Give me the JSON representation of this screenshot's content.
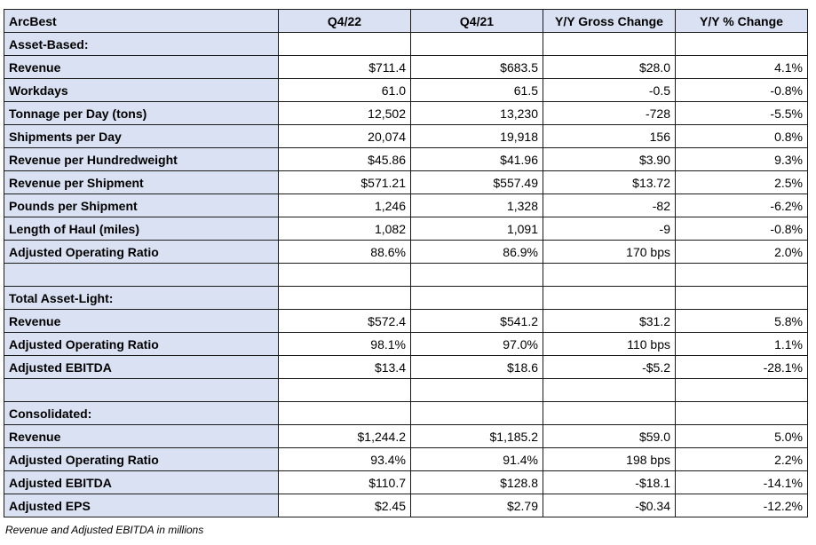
{
  "table": {
    "headers": [
      "ArcBest",
      "Q4/22",
      "Q4/21",
      "Y/Y Gross Change",
      "Y/Y % Change"
    ],
    "rows": [
      {
        "type": "section",
        "label": "Asset-Based:"
      },
      {
        "type": "data",
        "label": "Revenue",
        "values": [
          "$711.4",
          "$683.5",
          "$28.0",
          "4.1%"
        ]
      },
      {
        "type": "data",
        "label": "Workdays",
        "values": [
          "61.0",
          "61.5",
          "-0.5",
          "-0.8%"
        ]
      },
      {
        "type": "data",
        "label": "Tonnage per Day (tons)",
        "values": [
          "12,502",
          "13,230",
          "-728",
          "-5.5%"
        ]
      },
      {
        "type": "data",
        "label": "Shipments per Day",
        "values": [
          "20,074",
          "19,918",
          "156",
          "0.8%"
        ]
      },
      {
        "type": "data",
        "label": "Revenue per Hundredweight",
        "values": [
          "$45.86",
          "$41.96",
          "$3.90",
          "9.3%"
        ]
      },
      {
        "type": "data",
        "label": "Revenue per Shipment",
        "values": [
          "$571.21",
          "$557.49",
          "$13.72",
          "2.5%"
        ]
      },
      {
        "type": "data",
        "label": "Pounds per Shipment",
        "values": [
          "1,246",
          "1,328",
          "-82",
          "-6.2%"
        ]
      },
      {
        "type": "data",
        "label": "Length of Haul (miles)",
        "values": [
          "1,082",
          "1,091",
          "-9",
          "-0.8%"
        ]
      },
      {
        "type": "data",
        "label": "Adjusted Operating Ratio",
        "values": [
          "88.6%",
          "86.9%",
          "170 bps",
          "2.0%"
        ]
      },
      {
        "type": "blank"
      },
      {
        "type": "section",
        "label": "Total Asset-Light:"
      },
      {
        "type": "data",
        "label": "Revenue",
        "values": [
          "$572.4",
          "$541.2",
          "$31.2",
          "5.8%"
        ]
      },
      {
        "type": "data",
        "label": "Adjusted Operating Ratio",
        "values": [
          "98.1%",
          "97.0%",
          "110 bps",
          "1.1%"
        ]
      },
      {
        "type": "data",
        "label": "Adjusted EBITDA",
        "values": [
          "$13.4",
          "$18.6",
          "-$5.2",
          "-28.1%"
        ]
      },
      {
        "type": "blank"
      },
      {
        "type": "section",
        "label": "Consolidated:"
      },
      {
        "type": "data",
        "label": "Revenue",
        "values": [
          "$1,244.2",
          "$1,185.2",
          "$59.0",
          "5.0%"
        ]
      },
      {
        "type": "data",
        "label": "Adjusted Operating Ratio",
        "values": [
          "93.4%",
          "91.4%",
          "198 bps",
          "2.2%"
        ]
      },
      {
        "type": "data",
        "label": "Adjusted EBITDA",
        "values": [
          "$110.7",
          "$128.8",
          "-$18.1",
          "-14.1%"
        ]
      },
      {
        "type": "data",
        "label": "Adjusted EPS",
        "values": [
          "$2.45",
          "$2.79",
          "-$0.34",
          "-12.2%"
        ]
      }
    ]
  },
  "footnote": "Revenue and Adjusted EBITDA in millions",
  "colors": {
    "header_fill": "#d9e1f2",
    "border": "#1a1a1a",
    "cell_fill": "#ffffff"
  }
}
